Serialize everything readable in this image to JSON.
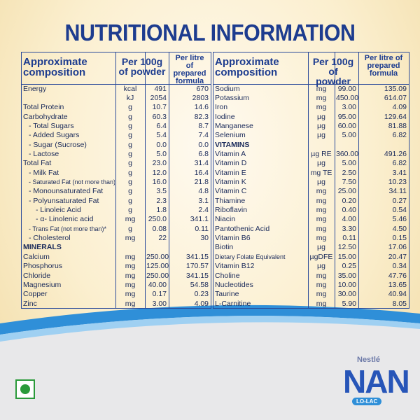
{
  "title": "NUTRITIONAL INFORMATION",
  "left": {
    "header": [
      "Approximate composition",
      "Per 100g of powder",
      "Per litre of prepared formula"
    ],
    "rows": [
      [
        "Energy",
        "kcal",
        "491",
        "670"
      ],
      [
        null,
        "kJ",
        "2054",
        "2803"
      ],
      [
        "Total Protein",
        "g",
        "10.7",
        "14.6"
      ],
      [
        "Carbohydrate",
        "g",
        "60.3",
        "82.3"
      ],
      [
        "- Total Sugars",
        "g",
        "6.4",
        "8.7"
      ],
      [
        "- Added Sugars",
        "g",
        "5.4",
        "7.4"
      ],
      [
        "- Sugar (Sucrose)",
        "g",
        "0.0",
        "0.0"
      ],
      [
        "- Lactose",
        "g",
        "5.0",
        "6.8"
      ],
      [
        "Total Fat",
        "g",
        "23.0",
        "31.4"
      ],
      [
        "- Milk Fat",
        "g",
        "12.0",
        "16.4"
      ],
      [
        "- Saturated Fat (not more than)",
        "g",
        "16.0",
        "21.8"
      ],
      [
        "- Monounsaturated Fat",
        "g",
        "3.5",
        "4.8"
      ],
      [
        "- Polyunsaturated Fat",
        "g",
        "2.3",
        "3.1"
      ],
      [
        "- Linoleic Acid",
        "g",
        "1.8",
        "2.4"
      ],
      [
        "- α- Linolenic acid",
        "mg",
        "250.0",
        "341.1"
      ],
      [
        "- Trans Fat (not more than)*",
        "g",
        "0.08",
        "0.11"
      ],
      [
        "- Cholesterol",
        "mg",
        "22",
        "30"
      ],
      [
        "MINERALS"
      ],
      [
        "Calcium",
        "mg",
        "250.00",
        "341.15"
      ],
      [
        "Phosphorus",
        "mg",
        "125.00",
        "170.57"
      ],
      [
        "Chloride",
        "mg",
        "250.00",
        "341.15"
      ],
      [
        "Magnesium",
        "mg",
        "40.00",
        "54.58"
      ],
      [
        "Copper",
        "mg",
        "0.17",
        "0.23"
      ],
      [
        "Zinc",
        "mg",
        "3.00",
        "4.09"
      ]
    ]
  },
  "right": {
    "header": [
      "Approximate composition",
      "Per 100g of powder",
      "Per litre of prepared formula"
    ],
    "rows": [
      [
        "Sodium",
        "mg",
        "99.00",
        "135.09"
      ],
      [
        "Potassium",
        "mg",
        "450.00",
        "614.07"
      ],
      [
        "Iron",
        "mg",
        "3.00",
        "4.09"
      ],
      [
        "Iodine",
        "µg",
        "95.00",
        "129.64"
      ],
      [
        "Manganese",
        "µg",
        "60.00",
        "81.88"
      ],
      [
        "Selenium",
        "µg",
        "5.00",
        "6.82"
      ],
      [
        "VITAMINS"
      ],
      [
        "Vitamin A",
        "µg RE",
        "360.00",
        "491.26"
      ],
      [
        "Vitamin D",
        "µg",
        "5.00",
        "6.82"
      ],
      [
        "Vitamin E",
        "mg TE",
        "2.50",
        "3.41"
      ],
      [
        "Vitamin K",
        "µg",
        "7.50",
        "10.23"
      ],
      [
        "Vitamin C",
        "mg",
        "25.00",
        "34.11"
      ],
      [
        "Thiamine",
        "mg",
        "0.20",
        "0.27"
      ],
      [
        "Riboflavin",
        "mg",
        "0.40",
        "0.54"
      ],
      [
        "Niacin",
        "mg",
        "4.00",
        "5.46"
      ],
      [
        "Pantothenic Acid",
        "mg",
        "3.30",
        "4.50"
      ],
      [
        "Vitamin B6",
        "mg",
        "0.11",
        "0.15"
      ],
      [
        "Biotin",
        "µg",
        "12.50",
        "17.06"
      ],
      [
        "Dietary Folate Equivalent",
        "µgDFE",
        "15.00",
        "20.47"
      ],
      [
        "Vitamin B12",
        "µg",
        "0.25",
        "0.34"
      ],
      [
        "Choline",
        "mg",
        "35.00",
        "47.76"
      ],
      [
        "Nucleotides",
        "mg",
        "10.00",
        "13.65"
      ],
      [
        "Taurine",
        "mg",
        "30.00",
        "40.94"
      ],
      [
        "L-Carnitine",
        "mg",
        "5.90",
        "8.05"
      ]
    ]
  },
  "brand": {
    "maker": "Nestlé",
    "name": "NAN",
    "variant": "LO-LAC"
  }
}
